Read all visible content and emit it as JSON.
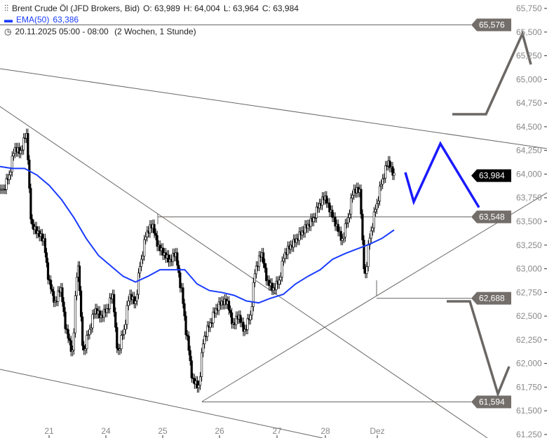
{
  "header": {
    "instrument": "Brent Crude Öl (JFD Brokers, Bid)",
    "open": "O: 63,989",
    "high": "H: 64,004",
    "low": "L: 63,964",
    "close": "C: 63,984",
    "ema_label": "EMA(50)",
    "ema_value": "63,386",
    "period": "20.11.2025 05:00 - 08:00",
    "range": "(2 Wochen, 1 Stunde)"
  },
  "chart_data": {
    "type": "candlestick",
    "ylim": [
      61.25,
      65.75
    ],
    "y_ticks": [
      "65,750",
      "65,500",
      "65,250",
      "65,000",
      "64,750",
      "64,500",
      "64,250",
      "64,000",
      "63,750",
      "63,500",
      "63,250",
      "63,000",
      "62,750",
      "62,500",
      "62,250",
      "62,000",
      "61,750",
      "61,500",
      "61,250"
    ],
    "x_ticks": [
      "21",
      "24",
      "25",
      "26",
      "27",
      "28",
      "Dez"
    ],
    "closes": [
      63.84,
      63.99,
      64.28,
      64.25,
      64.43,
      63.47,
      63.4,
      63.32,
      62.88,
      62.66,
      62.8,
      62.36,
      62.14,
      63.03,
      62.14,
      62.36,
      62.58,
      62.51,
      62.58,
      62.73,
      62.14,
      62.36,
      62.73,
      62.66,
      63.1,
      63.4,
      63.47,
      63.25,
      63.17,
      63.1,
      63.17,
      62.8,
      62.29,
      61.84,
      61.77,
      62.29,
      62.43,
      62.58,
      62.66,
      62.66,
      62.43,
      62.51,
      62.36,
      62.51,
      63.03,
      63.17,
      62.88,
      62.8,
      62.88,
      63.17,
      63.25,
      63.32,
      63.4,
      63.47,
      63.54,
      63.69,
      63.77,
      63.62,
      63.47,
      63.32,
      63.54,
      63.84,
      63.84,
      62.95,
      63.4,
      63.69,
      63.95,
      64.14,
      64.01
    ],
    "ema50": [
      64.08,
      64.06,
      64.06,
      63.99,
      63.88,
      63.73,
      63.54,
      63.32,
      63.14,
      63.03,
      62.92,
      62.86,
      62.92,
      62.99,
      62.99,
      62.99,
      62.84,
      62.77,
      62.75,
      62.72,
      62.66,
      62.64,
      62.69,
      62.73,
      62.84,
      62.92,
      62.99,
      63.1,
      63.16,
      63.21,
      63.26,
      63.32,
      63.41
    ],
    "price_levels": [
      {
        "label": "65,576",
        "value": 65.576
      },
      {
        "label": "63,548",
        "value": 63.548
      },
      {
        "label": "62,688",
        "value": 62.688
      },
      {
        "label": "61,594",
        "value": 61.594
      }
    ],
    "current_price": {
      "label": "63,984",
      "value": 63.984
    },
    "colors": {
      "candle": "#000000",
      "ema": "#1a3cff",
      "drawing": "#6b6764",
      "projection_blue": "#1a1aff",
      "level_label": "#736e6a"
    }
  }
}
